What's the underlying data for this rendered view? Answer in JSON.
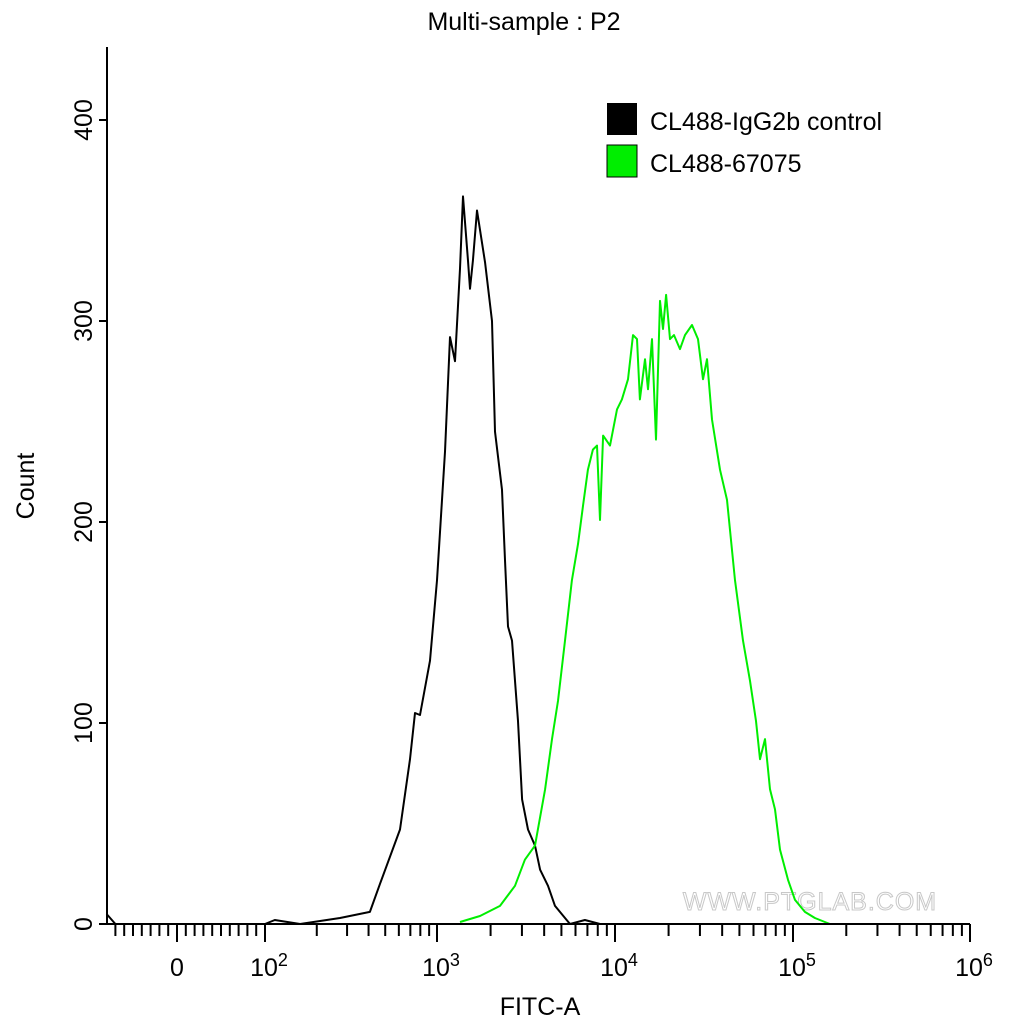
{
  "chart_data": {
    "type": "line",
    "title": "Multi-sample : P2",
    "xlabel": "FITC-A",
    "ylabel": "Count",
    "xscale": "biexponential (linear near 0, log above 10^2)",
    "xlim": [
      -80,
      1000000
    ],
    "ylim": [
      0,
      430
    ],
    "x_tick_labels": [
      {
        "value": 0,
        "base": "0",
        "exp": ""
      },
      {
        "value": 100,
        "base": "10",
        "exp": "2"
      },
      {
        "value": 1000,
        "base": "10",
        "exp": "3"
      },
      {
        "value": 10000,
        "base": "10",
        "exp": "4"
      },
      {
        "value": 100000,
        "base": "10",
        "exp": "5"
      },
      {
        "value": 1000000,
        "base": "10",
        "exp": "6"
      }
    ],
    "y_ticks": [
      0,
      100,
      200,
      300,
      400
    ],
    "y_tick_labels": [
      "0",
      "100",
      "200",
      "300",
      "400"
    ],
    "grid": false,
    "legend_placement": "top-right",
    "watermark": "WWW.PTGLAB.COM",
    "series": [
      {
        "name": "CL488-IgG2b control",
        "color": "#000000",
        "points": [
          [
            -80,
            5
          ],
          [
            -70,
            0
          ],
          [
            100,
            0
          ],
          [
            114,
            2
          ],
          [
            160,
            0
          ],
          [
            273,
            3
          ],
          [
            407,
            6
          ],
          [
            466,
            20
          ],
          [
            609,
            47
          ],
          [
            697,
            82
          ],
          [
            745,
            105
          ],
          [
            796,
            104
          ],
          [
            910,
            131
          ],
          [
            1000,
            171
          ],
          [
            1109,
            235
          ],
          [
            1183,
            292
          ],
          [
            1262,
            280
          ],
          [
            1346,
            326
          ],
          [
            1399,
            362
          ],
          [
            1493,
            330
          ],
          [
            1532,
            316
          ],
          [
            1592,
            330
          ],
          [
            1678,
            355
          ],
          [
            1862,
            329
          ],
          [
            2037,
            300
          ],
          [
            2118,
            245
          ],
          [
            2318,
            216
          ],
          [
            2411,
            181
          ],
          [
            2506,
            148
          ],
          [
            2637,
            141
          ],
          [
            2851,
            101
          ],
          [
            3005,
            62
          ],
          [
            3246,
            47
          ],
          [
            3554,
            39
          ],
          [
            3793,
            27
          ],
          [
            4205,
            19
          ],
          [
            4603,
            9
          ],
          [
            5236,
            3
          ],
          [
            5588,
            0
          ],
          [
            6778,
            2
          ],
          [
            8240,
            0
          ]
        ]
      },
      {
        "name": "CL488-67075",
        "color": "#00ee00",
        "points": [
          [
            1346,
            1
          ],
          [
            1745,
            4
          ],
          [
            2259,
            9
          ],
          [
            2742,
            19
          ],
          [
            3119,
            32
          ],
          [
            3554,
            39
          ],
          [
            4046,
            67
          ],
          [
            4426,
            92
          ],
          [
            4786,
            111
          ],
          [
            5236,
            141
          ],
          [
            5728,
            171
          ],
          [
            6194,
            189
          ],
          [
            6607,
            208
          ],
          [
            7047,
            226
          ],
          [
            7516,
            236
          ],
          [
            7925,
            238
          ],
          [
            8241,
            201
          ],
          [
            8570,
            243
          ],
          [
            9376,
            238
          ],
          [
            10260,
            256
          ],
          [
            10940,
            261
          ],
          [
            11830,
            271
          ],
          [
            12620,
            293
          ],
          [
            13300,
            291
          ],
          [
            13800,
            261
          ],
          [
            14750,
            281
          ],
          [
            15320,
            266
          ],
          [
            16140,
            291
          ],
          [
            17000,
            241
          ],
          [
            17900,
            310
          ],
          [
            18600,
            296
          ],
          [
            19360,
            313
          ],
          [
            20370,
            291
          ],
          [
            21450,
            293
          ],
          [
            23180,
            286
          ],
          [
            24720,
            293
          ],
          [
            27080,
            298
          ],
          [
            29260,
            291
          ],
          [
            31200,
            271
          ],
          [
            32860,
            281
          ],
          [
            35060,
            251
          ],
          [
            38880,
            226
          ],
          [
            42580,
            211
          ],
          [
            47210,
            171
          ],
          [
            52360,
            141
          ],
          [
            57300,
            121
          ],
          [
            61940,
            101
          ],
          [
            65250,
            82
          ],
          [
            69630,
            92
          ],
          [
            74300,
            67
          ],
          [
            79250,
            57
          ],
          [
            84550,
            37
          ],
          [
            93760,
            22
          ],
          [
            102600,
            12
          ],
          [
            116700,
            6
          ],
          [
            133000,
            3
          ],
          [
            151400,
            1
          ],
          [
            161600,
            0
          ]
        ]
      }
    ]
  }
}
